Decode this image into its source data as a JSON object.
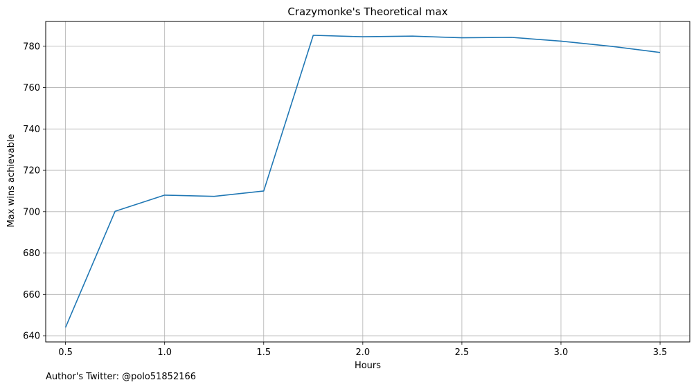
{
  "chart_data": {
    "type": "line",
    "title": "Crazymonke's Theoretical max",
    "xlabel": "Hours",
    "ylabel": "Max wins achievable",
    "x": [
      0.5,
      0.75,
      1.0,
      1.25,
      1.5,
      1.75,
      2.0,
      2.25,
      2.5,
      2.75,
      3.0,
      3.25,
      3.5
    ],
    "series": [
      {
        "values": [
          644,
          700.2,
          708,
          707.4,
          710,
          785.3,
          784.6,
          784.9,
          784.1,
          784.3,
          782.5,
          780,
          777
        ]
      }
    ],
    "xlim": [
      0.4,
      3.65
    ],
    "ylim": [
      637,
      792
    ],
    "xticks": [
      0.5,
      1.0,
      1.5,
      2.0,
      2.5,
      3.0,
      3.5
    ],
    "xtick_labels": [
      "0.5",
      "1.0",
      "1.5",
      "2.0",
      "2.5",
      "3.0",
      "3.5"
    ],
    "yticks": [
      640,
      660,
      680,
      700,
      720,
      740,
      760,
      780
    ],
    "ytick_labels": [
      "640",
      "660",
      "680",
      "700",
      "720",
      "740",
      "760",
      "780"
    ],
    "grid": true,
    "line_color": "#1f77b4",
    "grid_color": "#b0b0b0"
  },
  "footnote": "Author's Twitter: @polo51852166"
}
